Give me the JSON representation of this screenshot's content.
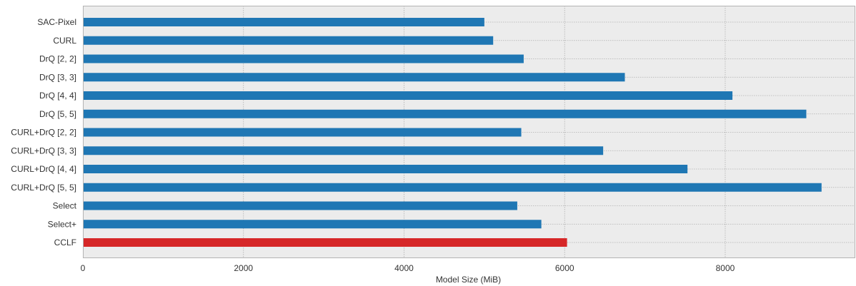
{
  "chart_data": {
    "type": "bar",
    "orientation": "horizontal",
    "categories": [
      "SAC-Pixel",
      "CURL",
      "DrQ [2, 2]",
      "DrQ [3, 3]",
      "DrQ [4, 4]",
      "DrQ [5, 5]",
      "CURL+DrQ [2, 2]",
      "CURL+DrQ [3, 3]",
      "CURL+DrQ [4, 4]",
      "CURL+DrQ [5, 5]",
      "Select",
      "Select+",
      "CCLF"
    ],
    "values": [
      5000,
      5110,
      5490,
      6750,
      8090,
      9010,
      5460,
      6480,
      7530,
      9200,
      5410,
      5710,
      6030
    ],
    "bar_colors": [
      "#1f77b4",
      "#1f77b4",
      "#1f77b4",
      "#1f77b4",
      "#1f77b4",
      "#1f77b4",
      "#1f77b4",
      "#1f77b4",
      "#1f77b4",
      "#1f77b4",
      "#1f77b4",
      "#1f77b4",
      "#d62728"
    ],
    "xlabel": "Model Size (MiB)",
    "ylabel": "",
    "title": "",
    "xlim": [
      0,
      9620
    ],
    "xticks": [
      0,
      2000,
      4000,
      6000,
      8000
    ],
    "xtick_labels": [
      "0",
      "2000",
      "4000",
      "6000",
      "8000"
    ],
    "grid": true,
    "legend": "none",
    "colors": {
      "plot_background": "#ececec",
      "grid": "#b0b0b0",
      "text": "#333333"
    }
  }
}
